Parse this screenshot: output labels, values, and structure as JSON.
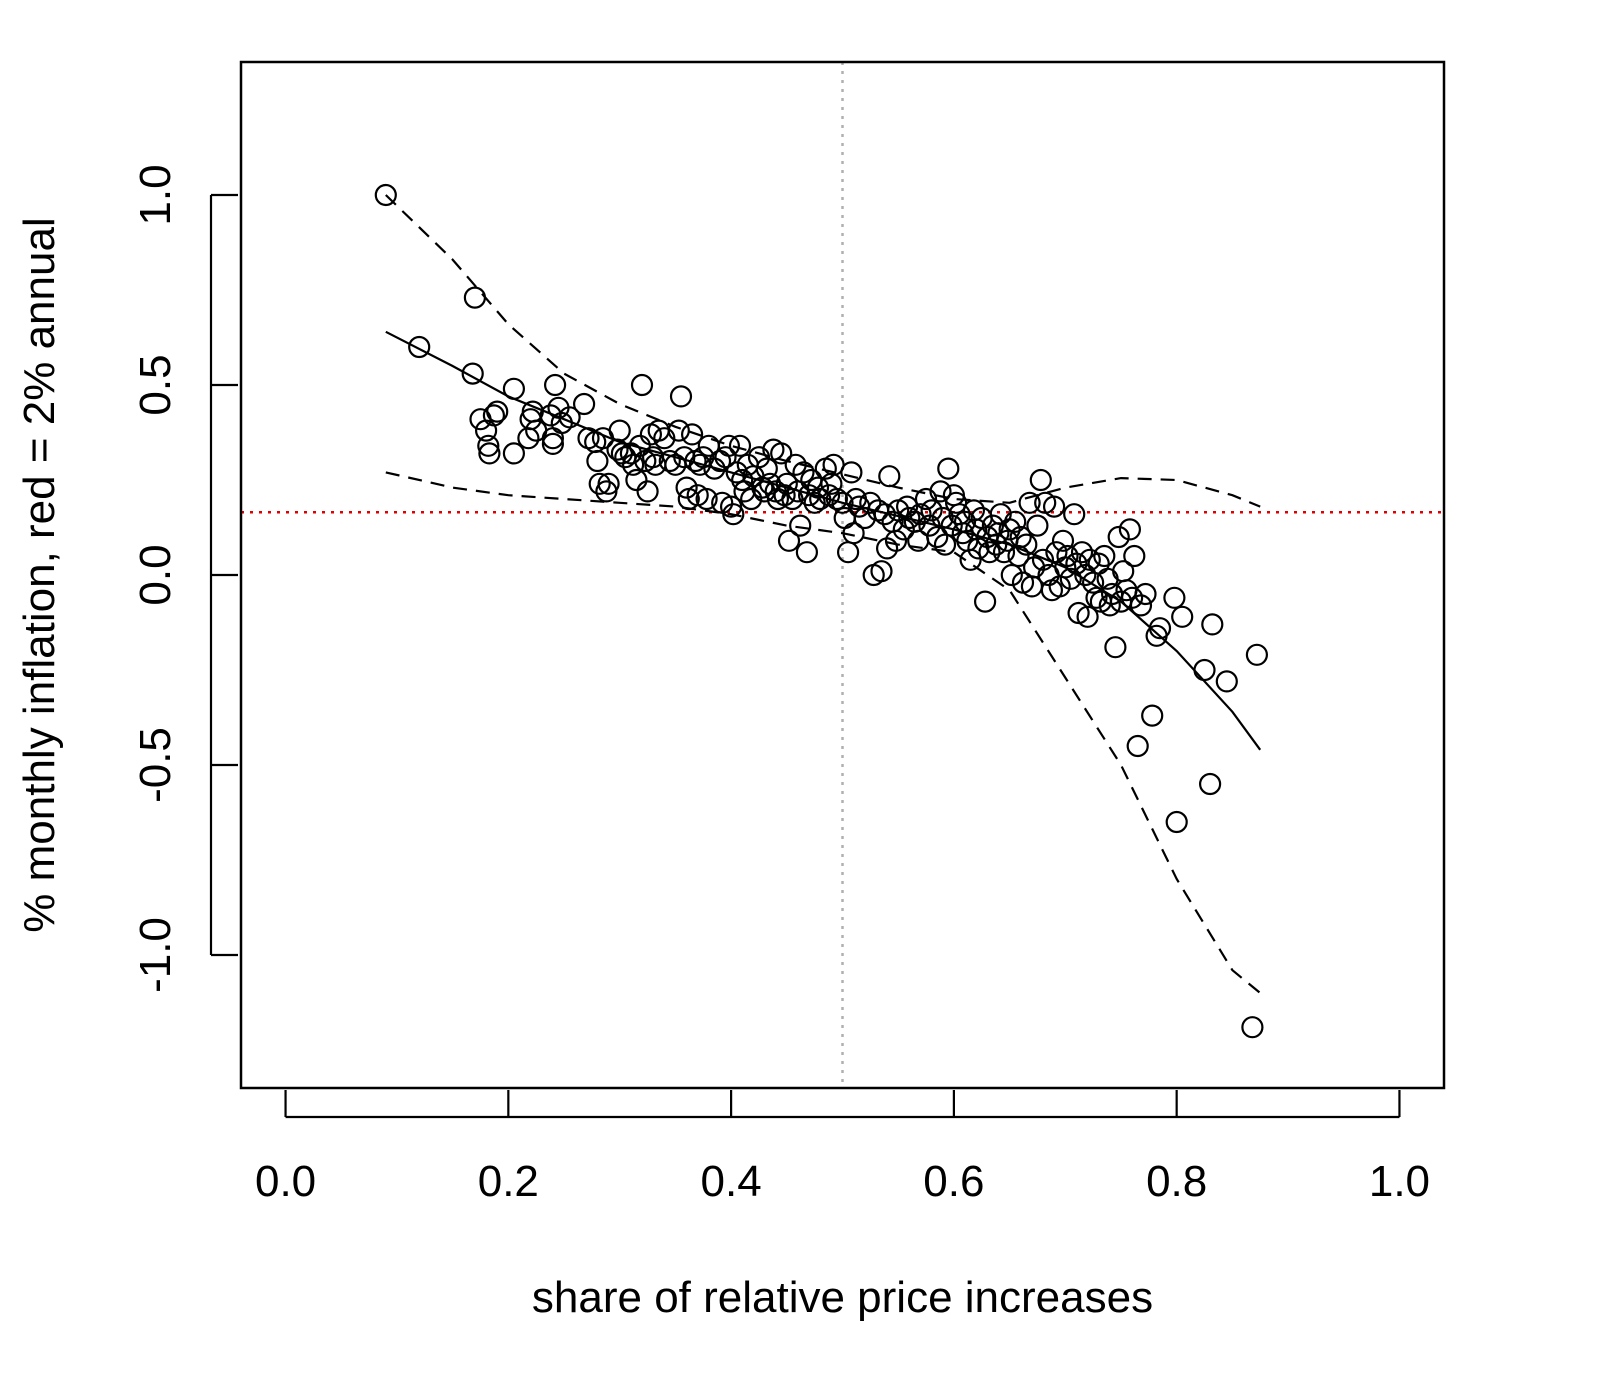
{
  "chart_data": {
    "type": "scatter",
    "xlabel": "share of relative price increases",
    "ylabel": "% monthly inflation, red = 2% annual",
    "xlim": [
      -0.04,
      1.04
    ],
    "ylim": [
      -1.35,
      1.35
    ],
    "x_ticks": [
      "0.0",
      "0.2",
      "0.4",
      "0.6",
      "0.8",
      "1.0"
    ],
    "y_ticks": [
      "-1.0",
      "-0.5",
      "0.0",
      "0.5",
      "1.0"
    ],
    "grid": false,
    "legend": "none",
    "reference_lines": {
      "vertical_x": 0.5,
      "vertical_color": "#b0b0b0",
      "horizontal_y": 0.165,
      "horizontal_color": "#e00000"
    },
    "fit_line": {
      "x": [
        0.09,
        0.15,
        0.2,
        0.25,
        0.3,
        0.35,
        0.4,
        0.45,
        0.5,
        0.55,
        0.6,
        0.65,
        0.7,
        0.75,
        0.8,
        0.85,
        0.875
      ],
      "y": [
        0.64,
        0.55,
        0.47,
        0.41,
        0.35,
        0.31,
        0.27,
        0.23,
        0.19,
        0.155,
        0.12,
        0.08,
        0.02,
        -0.07,
        -0.2,
        -0.36,
        -0.46
      ]
    },
    "upper_band": {
      "x": [
        0.09,
        0.15,
        0.2,
        0.25,
        0.3,
        0.35,
        0.4,
        0.45,
        0.5,
        0.55,
        0.6,
        0.65,
        0.7,
        0.75,
        0.8,
        0.85,
        0.875
      ],
      "y": [
        1.0,
        0.83,
        0.66,
        0.53,
        0.45,
        0.39,
        0.34,
        0.3,
        0.265,
        0.23,
        0.2,
        0.19,
        0.23,
        0.255,
        0.25,
        0.21,
        0.18
      ]
    },
    "lower_band": {
      "x": [
        0.09,
        0.15,
        0.2,
        0.25,
        0.3,
        0.35,
        0.4,
        0.45,
        0.5,
        0.55,
        0.6,
        0.65,
        0.7,
        0.75,
        0.8,
        0.85,
        0.875
      ],
      "y": [
        0.27,
        0.23,
        0.21,
        0.2,
        0.19,
        0.18,
        0.16,
        0.13,
        0.11,
        0.08,
        0.06,
        -0.04,
        -0.27,
        -0.5,
        -0.8,
        -1.04,
        -1.1
      ]
    },
    "points": [
      {
        "x": 0.09,
        "y": 1.0
      },
      {
        "x": 0.12,
        "y": 0.6
      },
      {
        "x": 0.168,
        "y": 0.53
      },
      {
        "x": 0.17,
        "y": 0.73
      },
      {
        "x": 0.175,
        "y": 0.41
      },
      {
        "x": 0.18,
        "y": 0.38
      },
      {
        "x": 0.182,
        "y": 0.34
      },
      {
        "x": 0.183,
        "y": 0.32
      },
      {
        "x": 0.187,
        "y": 0.42
      },
      {
        "x": 0.19,
        "y": 0.43
      },
      {
        "x": 0.205,
        "y": 0.32
      },
      {
        "x": 0.205,
        "y": 0.49
      },
      {
        "x": 0.218,
        "y": 0.36
      },
      {
        "x": 0.22,
        "y": 0.41
      },
      {
        "x": 0.222,
        "y": 0.43
      },
      {
        "x": 0.225,
        "y": 0.38
      },
      {
        "x": 0.238,
        "y": 0.42
      },
      {
        "x": 0.24,
        "y": 0.36
      },
      {
        "x": 0.24,
        "y": 0.345
      },
      {
        "x": 0.242,
        "y": 0.5
      },
      {
        "x": 0.245,
        "y": 0.44
      },
      {
        "x": 0.248,
        "y": 0.4
      },
      {
        "x": 0.255,
        "y": 0.415
      },
      {
        "x": 0.268,
        "y": 0.45
      },
      {
        "x": 0.272,
        "y": 0.36
      },
      {
        "x": 0.278,
        "y": 0.35
      },
      {
        "x": 0.28,
        "y": 0.3
      },
      {
        "x": 0.282,
        "y": 0.24
      },
      {
        "x": 0.285,
        "y": 0.36
      },
      {
        "x": 0.288,
        "y": 0.22
      },
      {
        "x": 0.29,
        "y": 0.24
      },
      {
        "x": 0.298,
        "y": 0.33
      },
      {
        "x": 0.3,
        "y": 0.38
      },
      {
        "x": 0.302,
        "y": 0.32
      },
      {
        "x": 0.305,
        "y": 0.31
      },
      {
        "x": 0.31,
        "y": 0.32
      },
      {
        "x": 0.312,
        "y": 0.29
      },
      {
        "x": 0.315,
        "y": 0.25
      },
      {
        "x": 0.318,
        "y": 0.34
      },
      {
        "x": 0.32,
        "y": 0.5
      },
      {
        "x": 0.323,
        "y": 0.3
      },
      {
        "x": 0.325,
        "y": 0.22
      },
      {
        "x": 0.328,
        "y": 0.37
      },
      {
        "x": 0.33,
        "y": 0.31
      },
      {
        "x": 0.332,
        "y": 0.29
      },
      {
        "x": 0.335,
        "y": 0.38
      },
      {
        "x": 0.34,
        "y": 0.36
      },
      {
        "x": 0.345,
        "y": 0.3
      },
      {
        "x": 0.35,
        "y": 0.29
      },
      {
        "x": 0.353,
        "y": 0.38
      },
      {
        "x": 0.355,
        "y": 0.47
      },
      {
        "x": 0.358,
        "y": 0.31
      },
      {
        "x": 0.36,
        "y": 0.23
      },
      {
        "x": 0.362,
        "y": 0.2
      },
      {
        "x": 0.365,
        "y": 0.37
      },
      {
        "x": 0.368,
        "y": 0.3
      },
      {
        "x": 0.37,
        "y": 0.21
      },
      {
        "x": 0.372,
        "y": 0.29
      },
      {
        "x": 0.375,
        "y": 0.31
      },
      {
        "x": 0.378,
        "y": 0.2
      },
      {
        "x": 0.38,
        "y": 0.34
      },
      {
        "x": 0.385,
        "y": 0.28
      },
      {
        "x": 0.39,
        "y": 0.3
      },
      {
        "x": 0.392,
        "y": 0.19
      },
      {
        "x": 0.395,
        "y": 0.31
      },
      {
        "x": 0.398,
        "y": 0.34
      },
      {
        "x": 0.4,
        "y": 0.18
      },
      {
        "x": 0.402,
        "y": 0.16
      },
      {
        "x": 0.405,
        "y": 0.27
      },
      {
        "x": 0.408,
        "y": 0.34
      },
      {
        "x": 0.41,
        "y": 0.25
      },
      {
        "x": 0.412,
        "y": 0.22
      },
      {
        "x": 0.415,
        "y": 0.29
      },
      {
        "x": 0.418,
        "y": 0.2
      },
      {
        "x": 0.42,
        "y": 0.26
      },
      {
        "x": 0.425,
        "y": 0.31
      },
      {
        "x": 0.428,
        "y": 0.23
      },
      {
        "x": 0.43,
        "y": 0.22
      },
      {
        "x": 0.432,
        "y": 0.28
      },
      {
        "x": 0.435,
        "y": 0.24
      },
      {
        "x": 0.438,
        "y": 0.33
      },
      {
        "x": 0.44,
        "y": 0.22
      },
      {
        "x": 0.442,
        "y": 0.2
      },
      {
        "x": 0.445,
        "y": 0.32
      },
      {
        "x": 0.448,
        "y": 0.21
      },
      {
        "x": 0.45,
        "y": 0.24
      },
      {
        "x": 0.452,
        "y": 0.09
      },
      {
        "x": 0.455,
        "y": 0.2
      },
      {
        "x": 0.458,
        "y": 0.29
      },
      {
        "x": 0.46,
        "y": 0.22
      },
      {
        "x": 0.462,
        "y": 0.13
      },
      {
        "x": 0.465,
        "y": 0.27
      },
      {
        "x": 0.468,
        "y": 0.06
      },
      {
        "x": 0.47,
        "y": 0.21
      },
      {
        "x": 0.472,
        "y": 0.25
      },
      {
        "x": 0.475,
        "y": 0.19
      },
      {
        "x": 0.478,
        "y": 0.23
      },
      {
        "x": 0.48,
        "y": 0.2
      },
      {
        "x": 0.485,
        "y": 0.28
      },
      {
        "x": 0.488,
        "y": 0.21
      },
      {
        "x": 0.49,
        "y": 0.24
      },
      {
        "x": 0.492,
        "y": 0.29
      },
      {
        "x": 0.495,
        "y": 0.2
      },
      {
        "x": 0.5,
        "y": 0.19
      },
      {
        "x": 0.502,
        "y": 0.15
      },
      {
        "x": 0.505,
        "y": 0.06
      },
      {
        "x": 0.508,
        "y": 0.27
      },
      {
        "x": 0.51,
        "y": 0.11
      },
      {
        "x": 0.512,
        "y": 0.2
      },
      {
        "x": 0.515,
        "y": 0.18
      },
      {
        "x": 0.52,
        "y": 0.15
      },
      {
        "x": 0.525,
        "y": 0.19
      },
      {
        "x": 0.528,
        "y": 0.0
      },
      {
        "x": 0.532,
        "y": 0.17
      },
      {
        "x": 0.535,
        "y": 0.01
      },
      {
        "x": 0.538,
        "y": 0.16
      },
      {
        "x": 0.54,
        "y": 0.07
      },
      {
        "x": 0.542,
        "y": 0.26
      },
      {
        "x": 0.545,
        "y": 0.14
      },
      {
        "x": 0.548,
        "y": 0.09
      },
      {
        "x": 0.55,
        "y": 0.17
      },
      {
        "x": 0.555,
        "y": 0.12
      },
      {
        "x": 0.558,
        "y": 0.18
      },
      {
        "x": 0.56,
        "y": 0.15
      },
      {
        "x": 0.565,
        "y": 0.14
      },
      {
        "x": 0.568,
        "y": 0.09
      },
      {
        "x": 0.57,
        "y": 0.16
      },
      {
        "x": 0.575,
        "y": 0.2
      },
      {
        "x": 0.578,
        "y": 0.13
      },
      {
        "x": 0.58,
        "y": 0.17
      },
      {
        "x": 0.585,
        "y": 0.1
      },
      {
        "x": 0.588,
        "y": 0.22
      },
      {
        "x": 0.59,
        "y": 0.15
      },
      {
        "x": 0.592,
        "y": 0.08
      },
      {
        "x": 0.595,
        "y": 0.28
      },
      {
        "x": 0.598,
        "y": 0.13
      },
      {
        "x": 0.6,
        "y": 0.21
      },
      {
        "x": 0.602,
        "y": 0.19
      },
      {
        "x": 0.605,
        "y": 0.16
      },
      {
        "x": 0.608,
        "y": 0.11
      },
      {
        "x": 0.61,
        "y": 0.14
      },
      {
        "x": 0.612,
        "y": 0.09
      },
      {
        "x": 0.615,
        "y": 0.04
      },
      {
        "x": 0.618,
        "y": 0.17
      },
      {
        "x": 0.62,
        "y": 0.12
      },
      {
        "x": 0.622,
        "y": 0.07
      },
      {
        "x": 0.625,
        "y": 0.15
      },
      {
        "x": 0.628,
        "y": -0.07
      },
      {
        "x": 0.63,
        "y": 0.1
      },
      {
        "x": 0.632,
        "y": 0.06
      },
      {
        "x": 0.635,
        "y": 0.13
      },
      {
        "x": 0.638,
        "y": 0.08
      },
      {
        "x": 0.64,
        "y": 0.11
      },
      {
        "x": 0.642,
        "y": 0.16
      },
      {
        "x": 0.645,
        "y": 0.06
      },
      {
        "x": 0.648,
        "y": 0.09
      },
      {
        "x": 0.65,
        "y": 0.12
      },
      {
        "x": 0.652,
        "y": 0.0
      },
      {
        "x": 0.655,
        "y": 0.14
      },
      {
        "x": 0.658,
        "y": 0.05
      },
      {
        "x": 0.66,
        "y": 0.1
      },
      {
        "x": 0.662,
        "y": -0.02
      },
      {
        "x": 0.665,
        "y": 0.08
      },
      {
        "x": 0.668,
        "y": 0.19
      },
      {
        "x": 0.67,
        "y": -0.03
      },
      {
        "x": 0.672,
        "y": 0.02
      },
      {
        "x": 0.675,
        "y": 0.13
      },
      {
        "x": 0.678,
        "y": 0.25
      },
      {
        "x": 0.68,
        "y": 0.04
      },
      {
        "x": 0.682,
        "y": 0.19
      },
      {
        "x": 0.685,
        "y": 0.0
      },
      {
        "x": 0.688,
        "y": -0.04
      },
      {
        "x": 0.69,
        "y": 0.18
      },
      {
        "x": 0.692,
        "y": 0.06
      },
      {
        "x": 0.695,
        "y": -0.03
      },
      {
        "x": 0.698,
        "y": 0.09
      },
      {
        "x": 0.7,
        "y": 0.02
      },
      {
        "x": 0.702,
        "y": 0.05
      },
      {
        "x": 0.705,
        "y": -0.01
      },
      {
        "x": 0.708,
        "y": 0.16
      },
      {
        "x": 0.71,
        "y": 0.03
      },
      {
        "x": 0.712,
        "y": -0.1
      },
      {
        "x": 0.715,
        "y": 0.06
      },
      {
        "x": 0.718,
        "y": 0.0
      },
      {
        "x": 0.72,
        "y": -0.11
      },
      {
        "x": 0.722,
        "y": 0.04
      },
      {
        "x": 0.725,
        "y": -0.02
      },
      {
        "x": 0.728,
        "y": -0.06
      },
      {
        "x": 0.73,
        "y": 0.03
      },
      {
        "x": 0.732,
        "y": -0.07
      },
      {
        "x": 0.735,
        "y": 0.05
      },
      {
        "x": 0.738,
        "y": -0.01
      },
      {
        "x": 0.74,
        "y": -0.08
      },
      {
        "x": 0.742,
        "y": -0.05
      },
      {
        "x": 0.745,
        "y": -0.19
      },
      {
        "x": 0.748,
        "y": 0.1
      },
      {
        "x": 0.75,
        "y": -0.07
      },
      {
        "x": 0.752,
        "y": 0.01
      },
      {
        "x": 0.755,
        "y": -0.04
      },
      {
        "x": 0.758,
        "y": 0.12
      },
      {
        "x": 0.76,
        "y": -0.06
      },
      {
        "x": 0.762,
        "y": 0.05
      },
      {
        "x": 0.765,
        "y": -0.45
      },
      {
        "x": 0.768,
        "y": -0.08
      },
      {
        "x": 0.772,
        "y": -0.05
      },
      {
        "x": 0.778,
        "y": -0.37
      },
      {
        "x": 0.782,
        "y": -0.16
      },
      {
        "x": 0.785,
        "y": -0.14
      },
      {
        "x": 0.798,
        "y": -0.06
      },
      {
        "x": 0.8,
        "y": -0.65
      },
      {
        "x": 0.805,
        "y": -0.11
      },
      {
        "x": 0.825,
        "y": -0.25
      },
      {
        "x": 0.83,
        "y": -0.55
      },
      {
        "x": 0.832,
        "y": -0.13
      },
      {
        "x": 0.845,
        "y": -0.28
      },
      {
        "x": 0.868,
        "y": -1.19
      },
      {
        "x": 0.872,
        "y": -0.21
      }
    ]
  }
}
